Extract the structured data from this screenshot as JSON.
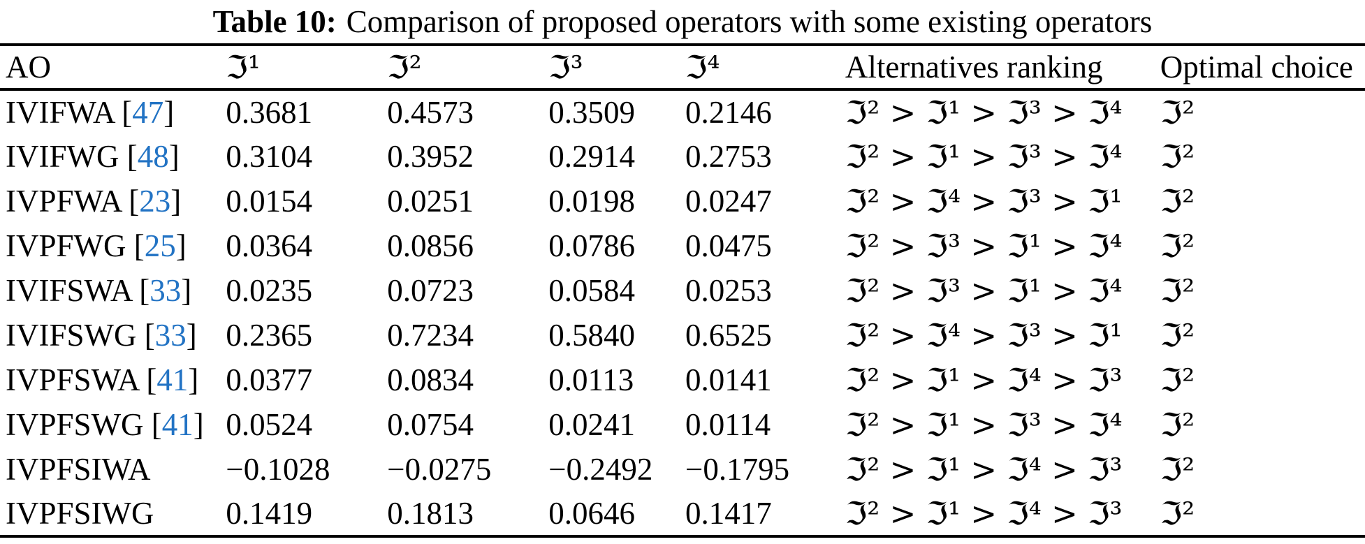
{
  "caption": {
    "label": "Table 10:",
    "text": "Comparison of proposed operators with some existing operators"
  },
  "colors": {
    "text": "#000000",
    "rule": "#000000",
    "citation_link": "#2273c4"
  },
  "table": {
    "columns": [
      "AO",
      "ℑ¹",
      "ℑ²",
      "ℑ³",
      "ℑ⁴",
      "Alternatives ranking",
      "Optimal choice"
    ],
    "ref_brackets": [
      "[",
      "]"
    ],
    "rows": [
      {
        "ao": "IVIFWA",
        "ref": "47",
        "values": [
          "0.3681",
          "0.4573",
          "0.3509",
          "0.2146"
        ],
        "ranking": "ℑ² > ℑ¹ > ℑ³ > ℑ⁴",
        "optimal": "ℑ²"
      },
      {
        "ao": "IVIFWG",
        "ref": "48",
        "values": [
          "0.3104",
          "0.3952",
          "0.2914",
          "0.2753"
        ],
        "ranking": "ℑ² > ℑ¹ > ℑ³ > ℑ⁴",
        "optimal": "ℑ²"
      },
      {
        "ao": "IVPFWA",
        "ref": "23",
        "values": [
          "0.0154",
          "0.0251",
          "0.0198",
          "0.0247"
        ],
        "ranking": "ℑ² > ℑ⁴ > ℑ³ > ℑ¹",
        "optimal": "ℑ²"
      },
      {
        "ao": "IVPFWG",
        "ref": "25",
        "values": [
          "0.0364",
          "0.0856",
          "0.0786",
          "0.0475"
        ],
        "ranking": "ℑ² > ℑ³ > ℑ¹ > ℑ⁴",
        "optimal": "ℑ²"
      },
      {
        "ao": "IVIFSWA",
        "ref": "33",
        "values": [
          "0.0235",
          "0.0723",
          "0.0584",
          "0.0253"
        ],
        "ranking": "ℑ² > ℑ³ > ℑ¹ > ℑ⁴",
        "optimal": "ℑ²"
      },
      {
        "ao": "IVIFSWG",
        "ref": "33",
        "values": [
          "0.2365",
          "0.7234",
          "0.5840",
          "0.6525"
        ],
        "ranking": "ℑ² > ℑ⁴ > ℑ³ > ℑ¹",
        "optimal": "ℑ²"
      },
      {
        "ao": "IVPFSWA",
        "ref": "41",
        "values": [
          "0.0377",
          "0.0834",
          "0.0113",
          "0.0141"
        ],
        "ranking": "ℑ² > ℑ¹ > ℑ⁴ > ℑ³",
        "optimal": "ℑ²"
      },
      {
        "ao": "IVPFSWG",
        "ref": "41",
        "values": [
          "0.0524",
          "0.0754",
          "0.0241",
          "0.0114"
        ],
        "ranking": "ℑ² > ℑ¹ > ℑ³ > ℑ⁴",
        "optimal": "ℑ²"
      },
      {
        "ao": "IVPFSIWA",
        "ref": "",
        "values": [
          "−0.1028",
          "−0.0275",
          "−0.2492",
          "−0.1795"
        ],
        "ranking": "ℑ² > ℑ¹ > ℑ⁴ > ℑ³",
        "optimal": "ℑ²"
      },
      {
        "ao": "IVPFSIWG",
        "ref": "",
        "values": [
          "0.1419",
          "0.1813",
          "0.0646",
          "0.1417"
        ],
        "ranking": "ℑ² > ℑ¹ > ℑ⁴ > ℑ³",
        "optimal": "ℑ²"
      }
    ]
  }
}
